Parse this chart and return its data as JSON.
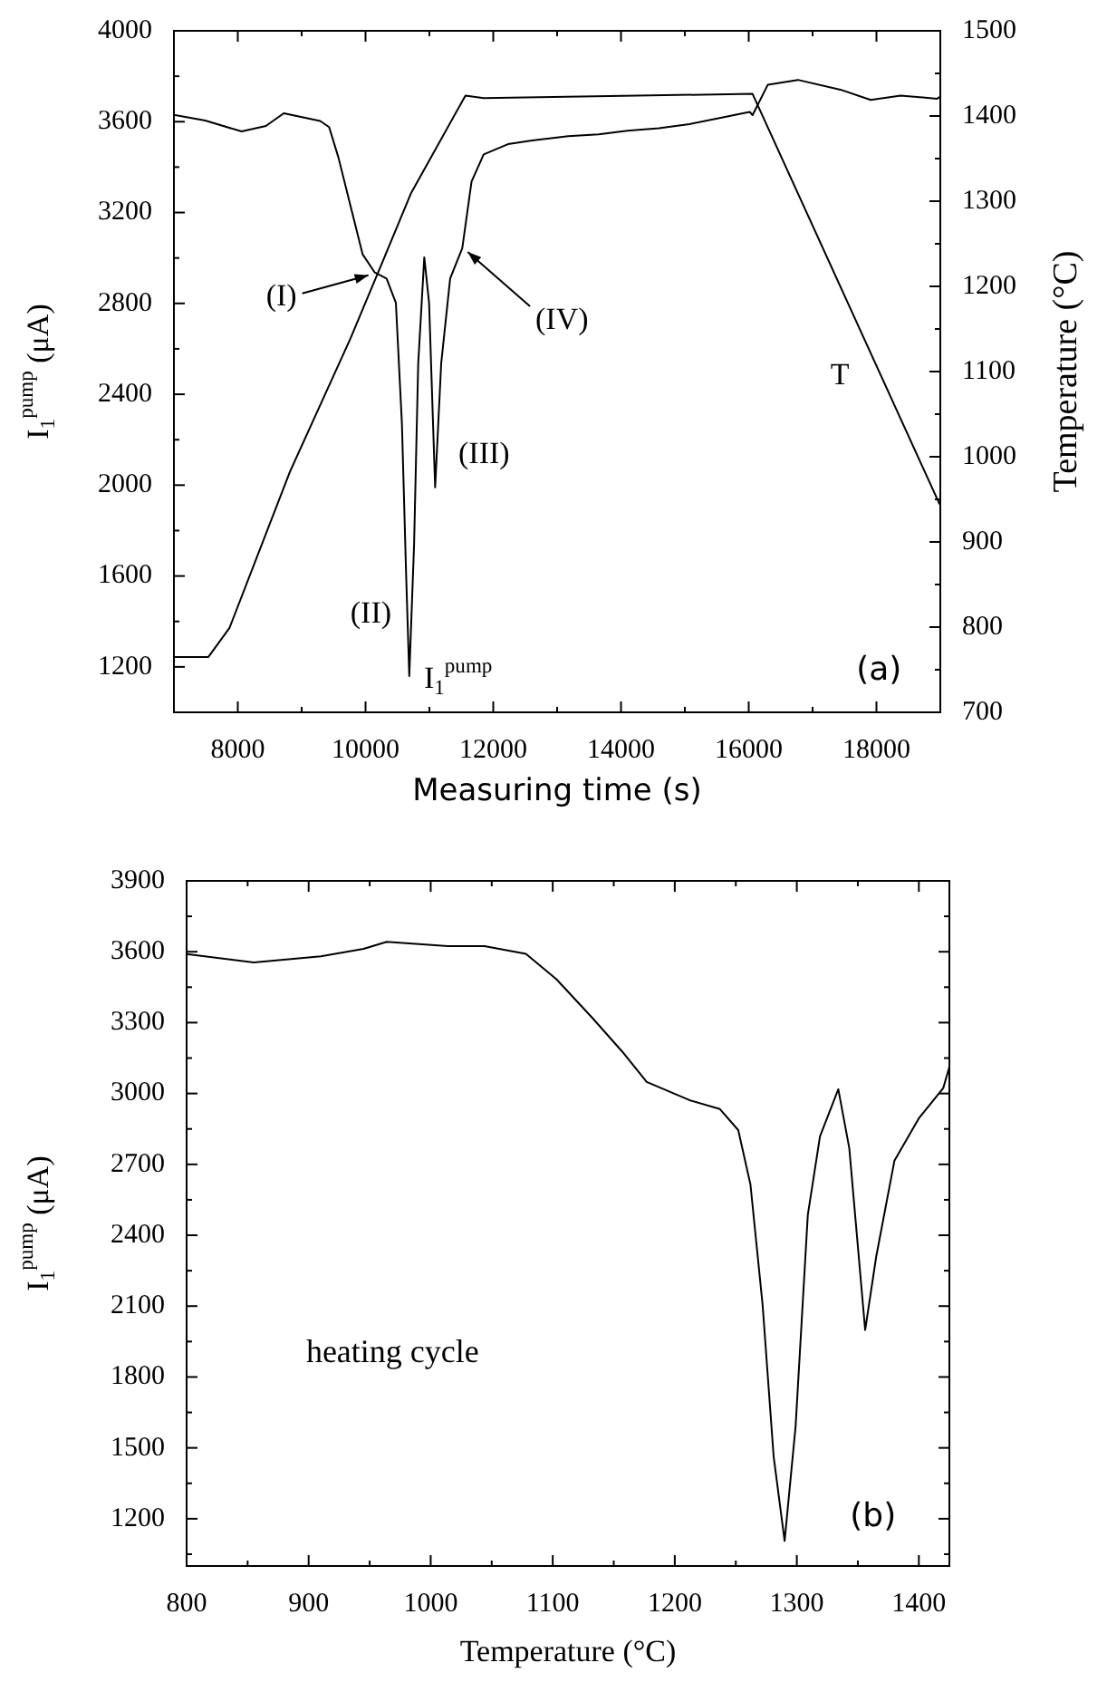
{
  "chart_data": [
    {
      "type": "line",
      "xlabel": "Measuring time (s)",
      "ylabel": "I$_{1}$$^{pump}$ (μA)",
      "y2label": "Temperature (°C)",
      "xlim": [
        7000,
        19000
      ],
      "xticks": [
        8000,
        {
          "value": 9000,
          "label": null
        },
        10000,
        {
          "value": 11000,
          "label": null
        },
        12000,
        {
          "value": 13000,
          "label": null
        },
        14000,
        {
          "value": 15000,
          "label": null
        },
        16000,
        {
          "value": 17000,
          "label": null
        },
        18000
      ],
      "ylim": [
        1000,
        4000
      ],
      "yticks": [
        1200,
        {
          "value": 1400,
          "label": null
        },
        1600,
        {
          "value": 1800,
          "label": null
        },
        2000,
        {
          "value": 2200,
          "label": null
        },
        2400,
        {
          "value": 2600,
          "label": null
        },
        2800,
        {
          "value": 3000,
          "label": null
        },
        3200,
        {
          "value": 3400,
          "label": null
        },
        3600,
        {
          "value": 3800,
          "label": null
        },
        4000
      ],
      "y2lim": [
        700,
        1500
      ],
      "y2ticks": [
        700,
        {
          "value": 750,
          "label": null
        },
        800,
        {
          "value": 850,
          "label": null
        },
        900,
        {
          "value": 950,
          "label": null
        },
        1000,
        {
          "value": 1050,
          "label": null
        },
        1100,
        {
          "value": 1150,
          "label": null
        },
        1200,
        {
          "value": 1250,
          "label": null
        },
        1300,
        {
          "value": 1350,
          "label": null
        },
        1400,
        {
          "value": 1450,
          "label": null
        },
        1500
      ],
      "series": [
        {
          "color": "#000000",
          "x": [
            7000,
            7490,
            8060,
            8440,
            8720,
            9290,
            9430,
            9575,
            9765,
            9955,
            10145,
            10330,
            10475,
            10570,
            10636,
            10685,
            10760,
            10825,
            10920,
            10995,
            11090,
            11185,
            11325,
            11515,
            11660,
            11850,
            12230,
            12610,
            13175,
            13650,
            14100,
            14594,
            15070,
            15543,
            16015,
            16060,
            16300,
            16770,
            17435,
            17910,
            18380,
            18950,
            19000
          ],
          "values": [
            3630,
            3605,
            3557,
            3581,
            3637,
            3603,
            3576,
            3443,
            3229,
            3016,
            2936,
            2909,
            2803,
            2270,
            1603,
            1160,
            1736,
            2536,
            3003,
            2803,
            1990,
            2536,
            2909,
            3043,
            3336,
            3456,
            3501,
            3517,
            3536,
            3544,
            3560,
            3571,
            3589,
            3616,
            3643,
            3629,
            3763,
            3784,
            3741,
            3696,
            3715,
            3701,
            3710
          ]
        },
        {
          "color": "#000000",
          "axis": "y2",
          "x": [
            7000,
            7540,
            7870,
            8820,
            9765,
            10240,
            10710,
            11565,
            11850,
            16060,
            18990
          ],
          "values": [
            765,
            765,
            799,
            983,
            1139,
            1224,
            1309,
            1424,
            1421,
            1426,
            944
          ]
        }
      ],
      "annotations": [
        {
          "text": "(I)",
          "x": 10130,
          "y": 2940
        },
        {
          "text": "(II)",
          "x": 10680,
          "y": 1160
        },
        {
          "text": "(III)",
          "x": 11090,
          "y": 1990
        },
        {
          "text": "(IV)",
          "x": 11515,
          "y": 3043
        },
        {
          "text": "T",
          "x": 18080,
          "y": 2480
        },
        {
          "text": "I$_{1}$$^{pump}$",
          "x": 10740,
          "y": 1600
        },
        "(a)"
      ]
    },
    {
      "type": "line",
      "xlabel": "Temperature (°C)",
      "ylabel": "I$_{1}$$^{pump}$ (μA)",
      "xlim": [
        800,
        1425
      ],
      "xticks": [
        800,
        {
          "value": 850,
          "label": null
        },
        900,
        {
          "value": 950,
          "label": null
        },
        1000,
        {
          "value": 1050,
          "label": null
        },
        1100,
        {
          "value": 1150,
          "label": null
        },
        1200,
        {
          "value": 1250,
          "label": null
        },
        1300,
        {
          "value": 1350,
          "label": null
        },
        1400
      ],
      "ylim": [
        1000,
        3900
      ],
      "yticks": [
        {
          "value": 1050,
          "label": null
        },
        1200,
        {
          "value": 1350,
          "label": null
        },
        1500,
        {
          "value": 1650,
          "label": null
        },
        1800,
        {
          "value": 1950,
          "label": null
        },
        2100,
        {
          "value": 2250,
          "label": null
        },
        2400,
        {
          "value": 2550,
          "label": null
        },
        2700,
        {
          "value": 2850,
          "label": null
        },
        3000,
        {
          "value": 3150,
          "label": null
        },
        3300,
        {
          "value": 3450,
          "label": null
        },
        3600,
        {
          "value": 3750,
          "label": null
        },
        3900
      ],
      "series": [
        {
          "color": "#000000",
          "x": [
            800,
            855,
            910,
            945,
            964,
            1014,
            1044,
            1078,
            1103,
            1133,
            1157,
            1177,
            1212,
            1237,
            1252,
            1262,
            1272,
            1281,
            1290,
            1299,
            1309,
            1319,
            1334,
            1343,
            1356,
            1365,
            1380,
            1400,
            1420,
            1425
          ],
          "values": [
            3590,
            3555,
            3581,
            3612,
            3642,
            3624,
            3624,
            3591,
            3484,
            3317,
            3177,
            3049,
            2972,
            2934,
            2845,
            2615,
            2103,
            1464,
            1106,
            1591,
            2486,
            2819,
            3018,
            2768,
            1999,
            2308,
            2716,
            2895,
            3023,
            3113
          ]
        }
      ],
      "annotations": [
        "heating cycle",
        "(b)"
      ]
    }
  ]
}
